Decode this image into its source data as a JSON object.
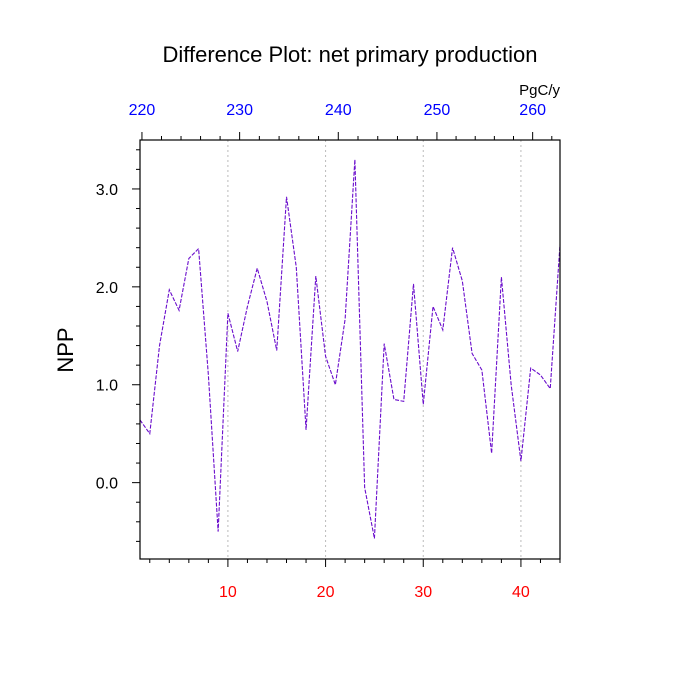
{
  "chart_data": {
    "type": "line",
    "title": "Difference Plot: net primary production",
    "ylabel": "NPP",
    "units_label": "PgC/y",
    "xlim": [
      1,
      44
    ],
    "ylim": [
      -0.78,
      3.5
    ],
    "x_ticks_bottom": [
      10,
      20,
      30,
      40
    ],
    "x_tick_labels_bottom": [
      "10",
      "20",
      "30",
      "40"
    ],
    "y_ticks": [
      0.0,
      1.0,
      2.0,
      3.0
    ],
    "y_tick_labels": [
      "0.0",
      "1.0",
      "2.0",
      "3.0"
    ],
    "top_axis": {
      "ticks": [
        1.2,
        11.2,
        21.3,
        31.4,
        41.2
      ],
      "labels": [
        "220",
        "230",
        "240",
        "250",
        "260"
      ]
    },
    "grid": "vertical dotted at bottom ticks",
    "series": [
      {
        "x": [
          1,
          2,
          3,
          4,
          5,
          6,
          7,
          8,
          9,
          10,
          11,
          12,
          13,
          14,
          15,
          16,
          17,
          18,
          19,
          20,
          21,
          22,
          23,
          24,
          25,
          26,
          27,
          28,
          29,
          30,
          31,
          32,
          33,
          34,
          35,
          36,
          37,
          38,
          39,
          40,
          41,
          42,
          43,
          44
        ],
        "values": [
          0.64,
          0.5,
          1.4,
          1.97,
          1.76,
          2.29,
          2.39,
          1.1,
          -0.5,
          1.73,
          1.34,
          1.8,
          2.19,
          1.85,
          1.35,
          2.92,
          2.2,
          0.54,
          2.11,
          1.29,
          1.0,
          1.67,
          3.3,
          -0.05,
          -0.57,
          1.42,
          0.85,
          0.83,
          2.03,
          0.8,
          1.8,
          1.56,
          2.4,
          2.06,
          1.32,
          1.15,
          0.3,
          2.1,
          1.0,
          0.22,
          1.17,
          1.1,
          0.96,
          2.43
        ]
      }
    ],
    "colors": {
      "line": "#6a0dcc",
      "bottom_labels": "#ff0000",
      "top_labels": "#0000ff",
      "axis": "#000000",
      "grid": "#bbbbbb"
    }
  }
}
